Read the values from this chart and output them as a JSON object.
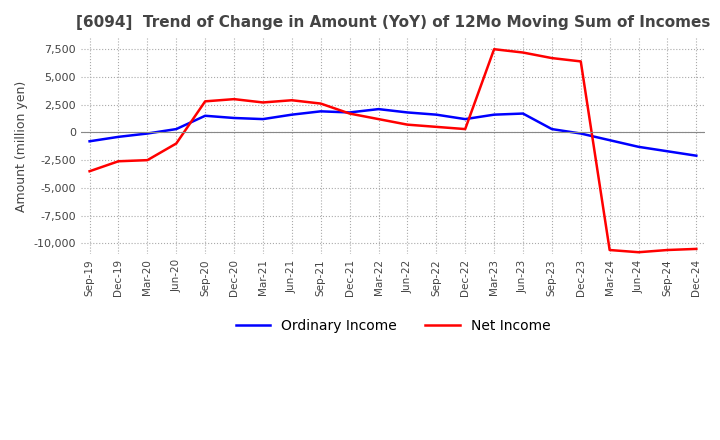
{
  "title": "[6094]  Trend of Change in Amount (YoY) of 12Mo Moving Sum of Incomes",
  "ylabel": "Amount (million yen)",
  "ylim": [
    -11000,
    8500
  ],
  "yticks": [
    7500,
    5000,
    2500,
    0,
    -2500,
    -5000,
    -7500,
    -10000
  ],
  "x_labels": [
    "Sep-19",
    "Dec-19",
    "Mar-20",
    "Jun-20",
    "Sep-20",
    "Dec-20",
    "Mar-21",
    "Jun-21",
    "Sep-21",
    "Dec-21",
    "Mar-22",
    "Jun-22",
    "Sep-22",
    "Dec-22",
    "Mar-23",
    "Jun-23",
    "Sep-23",
    "Dec-23",
    "Mar-24",
    "Jun-24",
    "Sep-24",
    "Dec-24"
  ],
  "ordinary_income": [
    -800,
    -400,
    -100,
    300,
    1500,
    1300,
    1200,
    1600,
    1900,
    1800,
    2100,
    1800,
    1600,
    1200,
    1600,
    1700,
    300,
    -100,
    -700,
    -1300,
    -1700,
    -2100
  ],
  "net_income": [
    -3500,
    -2600,
    -2500,
    -1000,
    2800,
    3000,
    2700,
    2900,
    2600,
    1700,
    1200,
    700,
    500,
    300,
    7500,
    7200,
    6700,
    6400,
    -10600,
    -10800,
    -10600,
    -10500
  ],
  "ordinary_color": "#0000ff",
  "net_color": "#ff0000",
  "background_color": "#ffffff",
  "grid_color": "#aaaaaa",
  "title_color": "#444444",
  "legend_labels": [
    "Ordinary Income",
    "Net Income"
  ]
}
